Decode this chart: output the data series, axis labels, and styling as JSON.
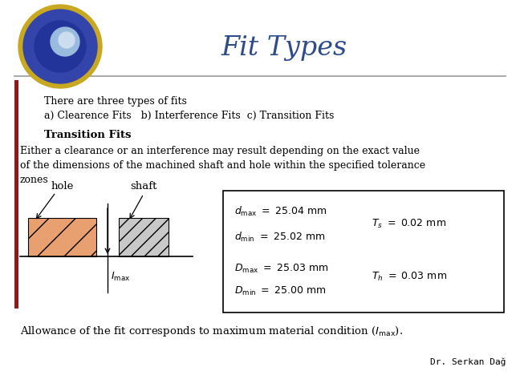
{
  "title": "Fit Types",
  "title_color": "#2F4B8C",
  "title_fontsize": 24,
  "bg_color": "#F2F2EE",
  "line1": "There are three types of fits",
  "line2": "a) Clearence Fits   b) Interference Fits  c) Transition Fits",
  "bold_label": "Transition Fits",
  "body_line1": "Either a clearance or an interference may result depending on the exact value",
  "body_line2": "of the dimensions of the machined shaft and hole within the specified tolerance",
  "body_line3": "zones",
  "author": "Dr. Serkan Dağ",
  "sidebar_color": "#8B1A1A",
  "header_line_color": "#999999",
  "hole_color": "#E8A070",
  "shaft_color": "#C8C8C8",
  "box_color": "#FFFFFF",
  "white_bg": "#FFFFFF"
}
